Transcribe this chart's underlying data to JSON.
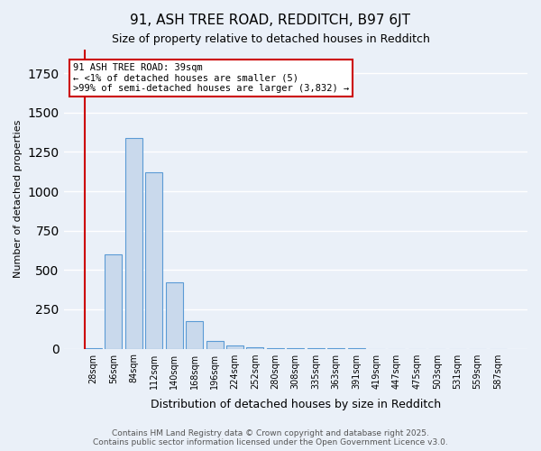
{
  "title1": "91, ASH TREE ROAD, REDDITCH, B97 6JT",
  "title2": "Size of property relative to detached houses in Redditch",
  "xlabel": "Distribution of detached houses by size in Redditch",
  "ylabel": "Number of detached properties",
  "bin_labels": [
    "28sqm",
    "56sqm",
    "84sqm",
    "112sqm",
    "140sqm",
    "168sqm",
    "196sqm",
    "224sqm",
    "252sqm",
    "280sqm",
    "308sqm",
    "335sqm",
    "363sqm",
    "391sqm",
    "419sqm",
    "447sqm",
    "475sqm",
    "503sqm",
    "531sqm",
    "559sqm",
    "587sqm"
  ],
  "bar_values": [
    5,
    600,
    1340,
    1120,
    420,
    175,
    50,
    20,
    10,
    5,
    3,
    2,
    1,
    1,
    0,
    0,
    0,
    0,
    0,
    0,
    0
  ],
  "bar_color": "#c9d9ec",
  "bar_edgecolor": "#5b9bd5",
  "ylim": [
    0,
    1900
  ],
  "background_color": "#eaf0f8",
  "grid_color": "#ffffff",
  "annotation_text": "91 ASH TREE ROAD: 39sqm\n← <1% of detached houses are smaller (5)\n>99% of semi-detached houses are larger (3,832) →",
  "footer": "Contains HM Land Registry data © Crown copyright and database right 2025.\nContains public sector information licensed under the Open Government Licence v3.0.",
  "footer_color": "#555555",
  "annotation_box_facecolor": "#ffffff",
  "annotation_border_color": "#cc0000",
  "red_line_color": "#cc0000"
}
